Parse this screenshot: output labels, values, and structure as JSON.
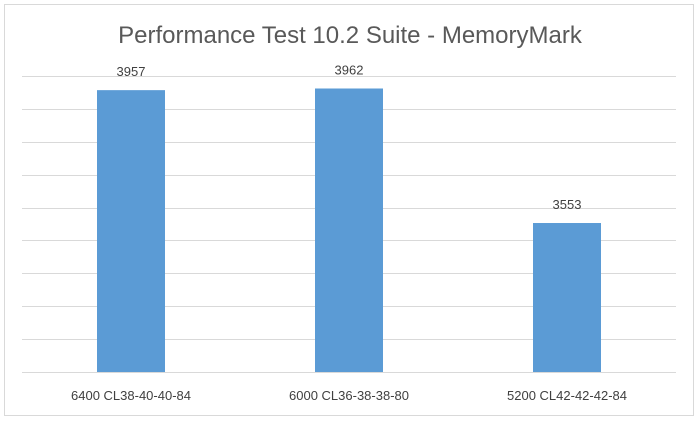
{
  "chart_data": {
    "type": "bar",
    "title": "Performance Test 10.2 Suite - MemoryMark",
    "categories": [
      "6400 CL38-40-40-84",
      "6000 CL36-38-38-80",
      "5200 CL42-42-42-84"
    ],
    "values": [
      3957,
      3962,
      3553
    ],
    "data_labels": [
      "3957",
      "3962",
      "3553"
    ],
    "ylim": [
      3100,
      4000
    ],
    "gridlines": [
      3100,
      3200,
      3300,
      3400,
      3500,
      3600,
      3700,
      3800,
      3900,
      4000
    ],
    "grid": true,
    "y_axis_labels_visible": false,
    "legend": "none",
    "bar_color": "#5b9bd5",
    "grid_color": "#d9d9d9"
  }
}
